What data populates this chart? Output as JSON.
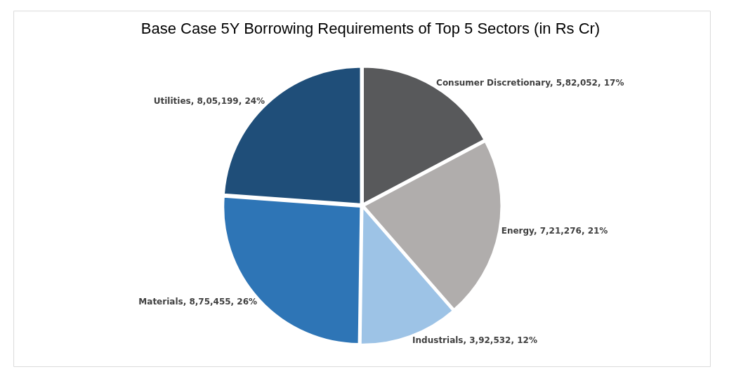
{
  "chart_data": {
    "type": "pie",
    "title": "Base Case 5Y Borrowing Requirements of Top 5 Sectors (in Rs Cr)",
    "categories": [
      "Consumer Discretionary",
      "Energy",
      "Industrials",
      "Materials",
      "Utilities"
    ],
    "values": [
      582052,
      721276,
      392532,
      875455,
      805199
    ],
    "value_labels": [
      "5,82,052, 17%",
      "7,21,276, 21%",
      "3,92,532, 12%",
      "8,75,455, 26%",
      "8,05,199, 24%"
    ],
    "colors": [
      "#58595b",
      "#b0adac",
      "#9dc3e6",
      "#2e75b6",
      "#1f4e79"
    ],
    "legend": false
  }
}
